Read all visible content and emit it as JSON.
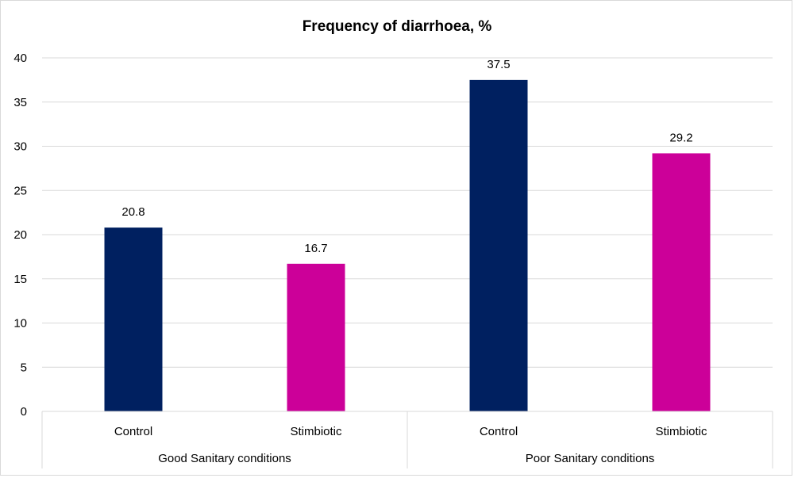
{
  "chart_data": {
    "type": "bar",
    "title": "Frequency of diarrhoea, %",
    "xlabel": "",
    "ylabel": "",
    "ylim": [
      0,
      40
    ],
    "yticks": [
      0,
      5,
      10,
      15,
      20,
      25,
      30,
      35,
      40
    ],
    "grid": true,
    "legend": "none",
    "groups": [
      {
        "label": "Good Sanitary conditions",
        "categories": [
          "Control",
          "Stimbiotic"
        ]
      },
      {
        "label": "Poor Sanitary conditions",
        "categories": [
          "Control",
          "Stimbiotic"
        ]
      }
    ],
    "categories": [
      "Control",
      "Stimbiotic",
      "Control",
      "Stimbiotic"
    ],
    "values": [
      20.8,
      16.7,
      37.5,
      29.2
    ],
    "value_labels": [
      "20.8",
      "16.7",
      "37.5",
      "29.2"
    ],
    "bar_colors": [
      "#002060",
      "#cc0099",
      "#002060",
      "#cc0099"
    ],
    "colors": {
      "control": "#002060",
      "stimbiotic": "#cc0099",
      "gridline": "#d9d9d9"
    }
  }
}
